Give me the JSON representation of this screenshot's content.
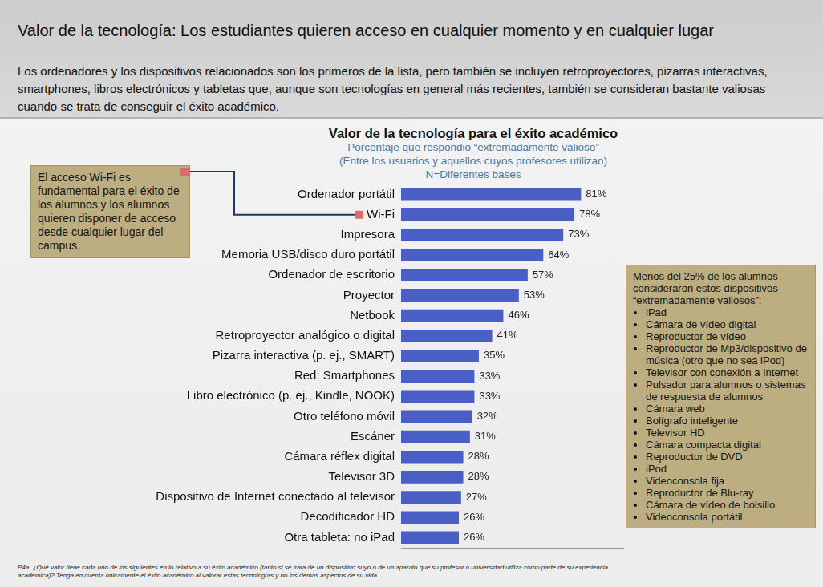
{
  "header": {
    "title": "Valor de la tecnología: Los estudiantes quieren acceso en cualquier momento y en cualquier lugar",
    "text": "Los ordenadores y los dispositivos relacionados son los primeros de la lista, pero también se incluyen retroproyectores, pizarras interactivas, smartphones, libros electrónicos y tabletas que, aunque son tecnologías en general más recientes, también se consideran bastante valiosas cuando se trata de conseguir el éxito académico."
  },
  "chart_data": {
    "type": "bar",
    "orientation": "horizontal",
    "title": "Valor de la tecnología para el éxito académico",
    "subtitle": [
      "Porcentaje que respondió “extremadamente valioso”",
      "(Entre los usuarios y aquellos cuyos profesores utilizan)",
      "N=Diferentes bases"
    ],
    "categories": [
      "Ordenador portátil",
      "Wi-Fi",
      "Impresora",
      "Memoria USB/disco duro portátil",
      "Ordenador de escritorio",
      "Proyector",
      "Netbook",
      "Retroproyector analógico o digital",
      "Pizarra interactiva (p. ej., SMART)",
      "Red: Smartphones",
      "Libro electrónico (p. ej., Kindle, NOOK)",
      "Otro teléfono móvil",
      "Escáner",
      "Cámara réflex digital",
      "Televisor 3D",
      "Dispositivo de Internet conectado al televisor",
      "Decodificador HD",
      "Otra tableta: no iPad"
    ],
    "values": [
      81,
      78,
      73,
      64,
      57,
      53,
      46,
      41,
      35,
      33,
      33,
      32,
      31,
      28,
      28,
      27,
      26,
      26
    ],
    "value_labels": [
      "81%",
      "78%",
      "73%",
      "64%",
      "57%",
      "53%",
      "46%",
      "41%",
      "35%",
      "33%",
      "33%",
      "32%",
      "31%",
      "28%",
      "28%",
      "27%",
      "26%",
      "26%"
    ],
    "color": "#4a5fc6",
    "xlim": [
      0,
      100
    ],
    "grid": false,
    "data_labels": true,
    "tick_labels": "y",
    "annotations": [
      {
        "text": "El acceso Wi-Fi es fundamental para el éxito de los alumnos y los alumnos quieren disponer de acceso desde cualquier lugar del campus.",
        "category": "Wi-Fi"
      }
    ]
  },
  "side_note": {
    "title": "Menos del 25% de los alumnos consideraron estos dispositivos “extremadamente valiosos”:",
    "items": [
      "iPad",
      "Cámara de vídeo digital",
      "Reproductor de vídeo",
      "Reproductor de Mp3/dispositivo de música (otro que no sea iPod)",
      "Televisor con conexión a Internet",
      "Pulsador para alumnos o sistemas de respuesta de alumnos",
      "Cámara web",
      "Bolígrafo inteligente",
      "Televisor HD",
      "Cámara compacta digital",
      "Reproductor de DVD",
      "iPod",
      "Videoconsola fija",
      "Reproductor de Blu-ray",
      "Cámara de vídeo de bolsillo",
      "Videoconsola portátil"
    ]
  },
  "footnote": "P4a. ¿Qué valor tiene cada uno de los siguientes en lo relativo a su éxito académico (tanto si se trata de un dispositivo suyo o de un aparato que su profesor o universidad utiliza como parte de su experiencia académica)? Tenga en cuenta únicamente el éxito académico al valorar estas tecnologías y no los demás aspectos de su vida."
}
